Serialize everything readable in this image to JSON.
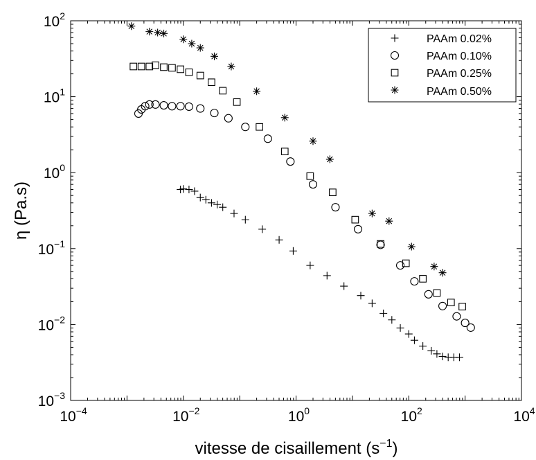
{
  "chart_data": {
    "type": "scatter",
    "title": "",
    "xlabel": "vitesse de cisaillement (s",
    "xlabel_superscript": "−1",
    "xlabel_close": ")",
    "ylabel": "η (Pa.s)",
    "xscale": "log",
    "yscale": "log",
    "xlim": [
      0.0001,
      10000
    ],
    "ylim": [
      0.001,
      100
    ],
    "xticks": [
      {
        "value": 0.0001,
        "base": "10",
        "exp": "−4"
      },
      {
        "value": 0.01,
        "base": "10",
        "exp": "−2"
      },
      {
        "value": 1,
        "base": "10",
        "exp": "0"
      },
      {
        "value": 100,
        "base": "10",
        "exp": "2"
      },
      {
        "value": 10000,
        "base": "10",
        "exp": "4"
      }
    ],
    "yticks": [
      {
        "value": 0.001,
        "base": "10",
        "exp": "−3"
      },
      {
        "value": 0.01,
        "base": "10",
        "exp": "−2"
      },
      {
        "value": 0.1,
        "base": "10",
        "exp": "−1"
      },
      {
        "value": 1,
        "base": "10",
        "exp": "0"
      },
      {
        "value": 10,
        "base": "10",
        "exp": "1"
      },
      {
        "value": 100,
        "base": "10",
        "exp": "2"
      }
    ],
    "grid": false,
    "legend_position": "top-right",
    "series": [
      {
        "name": "PAAm 0.02%",
        "marker": "plus",
        "x": [
          0.0089,
          0.01,
          0.0126,
          0.0158,
          0.02,
          0.0251,
          0.0316,
          0.0398,
          0.0501,
          0.0794,
          0.126,
          0.251,
          0.501,
          0.891,
          1.78,
          3.55,
          7.08,
          14.1,
          22.4,
          35.5,
          50.1,
          70.8,
          100,
          126,
          178,
          251,
          316,
          398,
          501,
          631,
          794
        ],
        "y": [
          0.6,
          0.61,
          0.6,
          0.57,
          0.47,
          0.44,
          0.4,
          0.38,
          0.35,
          0.29,
          0.24,
          0.18,
          0.13,
          0.093,
          0.06,
          0.044,
          0.032,
          0.024,
          0.019,
          0.014,
          0.0115,
          0.009,
          0.0075,
          0.0062,
          0.0052,
          0.0045,
          0.0041,
          0.0038,
          0.0037,
          0.0037,
          0.0037
        ]
      },
      {
        "name": "PAAm 0.10%",
        "marker": "circle",
        "x": [
          0.0016,
          0.0018,
          0.0021,
          0.0025,
          0.0032,
          0.0045,
          0.0063,
          0.0089,
          0.0126,
          0.02,
          0.0355,
          0.0631,
          0.126,
          0.316,
          0.794,
          2.0,
          5.01,
          12.6,
          31.6,
          70.8,
          126,
          224,
          398,
          708,
          1000,
          1260
        ],
        "y": [
          6.0,
          6.8,
          7.5,
          7.9,
          7.9,
          7.7,
          7.5,
          7.5,
          7.4,
          7.0,
          6.1,
          5.2,
          4.0,
          2.8,
          1.4,
          0.7,
          0.35,
          0.18,
          0.112,
          0.06,
          0.037,
          0.025,
          0.0175,
          0.0128,
          0.0105,
          0.0091
        ]
      },
      {
        "name": "PAAm 0.25%",
        "marker": "square",
        "x": [
          0.0013,
          0.0018,
          0.0025,
          0.0032,
          0.0045,
          0.0063,
          0.0089,
          0.0126,
          0.02,
          0.0316,
          0.0501,
          0.0891,
          0.224,
          0.631,
          1.78,
          4.47,
          11.2,
          31.6,
          89.1,
          178,
          316,
          562,
          891
        ],
        "y": [
          25,
          25,
          25,
          26,
          24.5,
          24,
          23,
          21,
          19,
          15.5,
          12,
          8.5,
          4.0,
          1.9,
          0.9,
          0.55,
          0.24,
          0.115,
          0.064,
          0.04,
          0.026,
          0.0195,
          0.0172
        ]
      },
      {
        "name": "PAAm 0.50%",
        "marker": "asterisk",
        "x": [
          0.0012,
          0.0025,
          0.0035,
          0.0045,
          0.01,
          0.0141,
          0.02,
          0.0355,
          0.0708,
          0.2,
          0.631,
          2.0,
          3.98,
          22.4,
          44.7,
          112,
          282,
          398
        ],
        "y": [
          85,
          72,
          70,
          68,
          57,
          50,
          44,
          34,
          25,
          11.8,
          5.3,
          2.6,
          1.5,
          0.29,
          0.23,
          0.106,
          0.058,
          0.048
        ]
      }
    ]
  }
}
